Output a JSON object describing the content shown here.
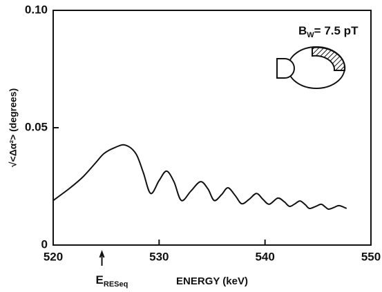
{
  "chart_data": {
    "type": "line",
    "y_label": "√<Δα²> (degrees)",
    "x_label": "ENERGY (keV)",
    "annotation": {
      "text": "E",
      "subscript": "RESeq",
      "x": 524.6
    },
    "inset_label": {
      "text": "B",
      "subscript": "W",
      "rest": "= 7.5 pT"
    },
    "x": [
      520,
      521.5,
      522.8,
      524,
      524.8,
      525.8,
      526.8,
      527.8,
      528.5,
      529.2,
      530,
      530.7,
      531.4,
      532.1,
      533,
      533.9,
      534.6,
      535.2,
      535.9,
      536.5,
      537.2,
      537.8,
      538.5,
      539.2,
      539.8,
      540.4,
      541.2,
      541.8,
      542.3,
      542.8,
      543.3,
      543.8,
      544.2,
      544.8,
      545.3,
      545.7,
      546,
      546.5,
      547,
      547.7
    ],
    "series": [
      {
        "color": "#111111",
        "values": [
          0.019,
          0.024,
          0.029,
          0.035,
          0.039,
          0.0415,
          0.0426,
          0.039,
          0.031,
          0.022,
          0.0275,
          0.0315,
          0.027,
          0.019,
          0.023,
          0.027,
          0.024,
          0.019,
          0.0215,
          0.0244,
          0.021,
          0.0176,
          0.0195,
          0.022,
          0.0195,
          0.0174,
          0.02,
          0.0185,
          0.0165,
          0.0175,
          0.0188,
          0.0172,
          0.0156,
          0.0165,
          0.0174,
          0.0162,
          0.0153,
          0.016,
          0.0168,
          0.0156
        ]
      }
    ],
    "xlim": [
      520,
      550
    ],
    "xticks": [
      520,
      530,
      540,
      550
    ],
    "ylim": [
      0,
      0.1
    ],
    "yticks": [
      0,
      0.05,
      {
        "value": 0.1,
        "label": "0.10"
      }
    ]
  }
}
